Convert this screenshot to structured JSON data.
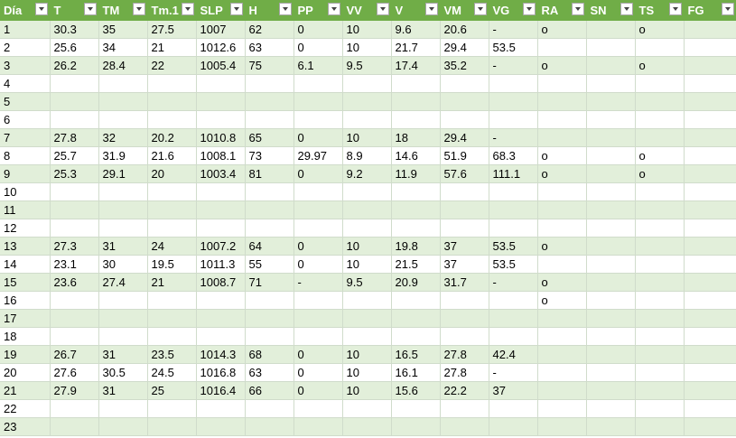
{
  "columns": [
    "Día",
    "T",
    "TM",
    "Tm.1",
    "SLP",
    "H",
    "PP",
    "VV",
    "V",
    "VM",
    "VG",
    "RA",
    "SN",
    "TS",
    "FG"
  ],
  "rows": [
    [
      "1",
      "30.3",
      "35",
      "27.5",
      "1007",
      "62",
      "0",
      "10",
      "9.6",
      "20.6",
      "-",
      "o",
      "",
      "o",
      ""
    ],
    [
      "2",
      "25.6",
      "34",
      "21",
      "1012.6",
      "63",
      "0",
      "10",
      "21.7",
      "29.4",
      "53.5",
      "",
      "",
      "",
      ""
    ],
    [
      "3",
      "26.2",
      "28.4",
      "22",
      "1005.4",
      "75",
      "6.1",
      "9.5",
      "17.4",
      "35.2",
      "-",
      "o",
      "",
      "o",
      ""
    ],
    [
      "4",
      "",
      "",
      "",
      "",
      "",
      "",
      "",
      "",
      "",
      "",
      "",
      "",
      "",
      ""
    ],
    [
      "5",
      "",
      "",
      "",
      "",
      "",
      "",
      "",
      "",
      "",
      "",
      "",
      "",
      "",
      ""
    ],
    [
      "6",
      "",
      "",
      "",
      "",
      "",
      "",
      "",
      "",
      "",
      "",
      "",
      "",
      "",
      ""
    ],
    [
      "7",
      "27.8",
      "32",
      "20.2",
      "1010.8",
      "65",
      "0",
      "10",
      "18",
      "29.4",
      "-",
      "",
      "",
      "",
      ""
    ],
    [
      "8",
      "25.7",
      "31.9",
      "21.6",
      "1008.1",
      "73",
      "29.97",
      "8.9",
      "14.6",
      "51.9",
      "68.3",
      "o",
      "",
      "o",
      ""
    ],
    [
      "9",
      "25.3",
      "29.1",
      "20",
      "1003.4",
      "81",
      "0",
      "9.2",
      "11.9",
      "57.6",
      "111.1",
      "o",
      "",
      "o",
      ""
    ],
    [
      "10",
      "",
      "",
      "",
      "",
      "",
      "",
      "",
      "",
      "",
      "",
      "",
      "",
      "",
      ""
    ],
    [
      "11",
      "",
      "",
      "",
      "",
      "",
      "",
      "",
      "",
      "",
      "",
      "",
      "",
      "",
      ""
    ],
    [
      "12",
      "",
      "",
      "",
      "",
      "",
      "",
      "",
      "",
      "",
      "",
      "",
      "",
      "",
      ""
    ],
    [
      "13",
      "27.3",
      "31",
      "24",
      "1007.2",
      "64",
      "0",
      "10",
      "19.8",
      "37",
      "53.5",
      "o",
      "",
      "",
      ""
    ],
    [
      "14",
      "23.1",
      "30",
      "19.5",
      "1011.3",
      "55",
      "0",
      "10",
      "21.5",
      "37",
      "53.5",
      "",
      "",
      "",
      ""
    ],
    [
      "15",
      "23.6",
      "27.4",
      "21",
      "1008.7",
      "71",
      "-",
      "9.5",
      "20.9",
      "31.7",
      "-",
      "o",
      "",
      "",
      ""
    ],
    [
      "16",
      "",
      "",
      "",
      "",
      "",
      "",
      "",
      "",
      "",
      "",
      "o",
      "",
      "",
      ""
    ],
    [
      "17",
      "",
      "",
      "",
      "",
      "",
      "",
      "",
      "",
      "",
      "",
      "",
      "",
      "",
      ""
    ],
    [
      "18",
      "",
      "",
      "",
      "",
      "",
      "",
      "",
      "",
      "",
      "",
      "",
      "",
      "",
      ""
    ],
    [
      "19",
      "26.7",
      "31",
      "23.5",
      "1014.3",
      "68",
      "0",
      "10",
      "16.5",
      "27.8",
      "42.4",
      "",
      "",
      "",
      ""
    ],
    [
      "20",
      "27.6",
      "30.5",
      "24.5",
      "1016.8",
      "63",
      "0",
      "10",
      "16.1",
      "27.8",
      "-",
      "",
      "",
      "",
      ""
    ],
    [
      "21",
      "27.9",
      "31",
      "25",
      "1016.4",
      "66",
      "0",
      "10",
      "15.6",
      "22.2",
      "37",
      "",
      "",
      "",
      ""
    ],
    [
      "22",
      "",
      "",
      "",
      "",
      "",
      "",
      "",
      "",
      "",
      "",
      "",
      "",
      "",
      ""
    ],
    [
      "23",
      "",
      "",
      "",
      "",
      "",
      "",
      "",
      "",
      "",
      "",
      "",
      "",
      "",
      ""
    ]
  ],
  "colors": {
    "header_bg": "#70ad47",
    "band_bg": "#e2efda",
    "grid_line": "#d0dccb"
  }
}
